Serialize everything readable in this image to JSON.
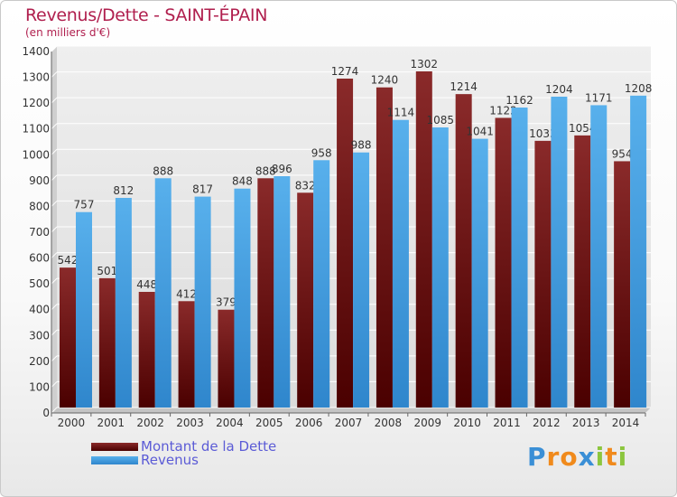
{
  "chart_data": {
    "type": "bar",
    "title": "Revenus/Dette - SAINT-ÉPAIN",
    "subtitle": "(en milliers d'€)",
    "categories": [
      "2000",
      "2001",
      "2002",
      "2003",
      "2004",
      "2005",
      "2006",
      "2007",
      "2008",
      "2009",
      "2010",
      "2011",
      "2012",
      "2013",
      "2014"
    ],
    "series": [
      {
        "name": "Montant de la Dette",
        "color": "#7a1a1a",
        "values": [
          542,
          501,
          448,
          412,
          379,
          888,
          832,
          1274,
          1240,
          1302,
          1214,
          1122,
          1033,
          1054,
          954
        ],
        "labels": [
          "542",
          "501",
          "448",
          "412",
          "379",
          "888",
          "832",
          "1274",
          "1240",
          "1302",
          "1214",
          "1122",
          "1033",
          "1054",
          "954"
        ]
      },
      {
        "name": "Revenus",
        "color": "#3a9ae0",
        "values": [
          757,
          812,
          888,
          817,
          848,
          896,
          958,
          988,
          1114,
          1085,
          1041,
          1162,
          1204,
          1171,
          1208
        ],
        "labels": [
          "757",
          "812",
          "888",
          "817",
          "848",
          "896",
          "958",
          "988",
          "1114",
          "1085",
          "1041",
          "1162",
          "1204",
          "1171",
          "1208"
        ]
      }
    ],
    "ylim": [
      0,
      1400
    ],
    "yticks": [
      0,
      100,
      200,
      300,
      400,
      500,
      600,
      700,
      800,
      900,
      1000,
      1100,
      1200,
      1300,
      1400
    ],
    "grid": true,
    "legend_position": "bottom-left"
  },
  "logo": {
    "letters": [
      "P",
      "r",
      "o",
      "x",
      "i",
      "t",
      "i"
    ],
    "colors": [
      "#3a8fd6",
      "#f08a1c",
      "#f08a1c",
      "#3a8fd6",
      "#8cc63e",
      "#f08a1c",
      "#8cc63e"
    ]
  }
}
